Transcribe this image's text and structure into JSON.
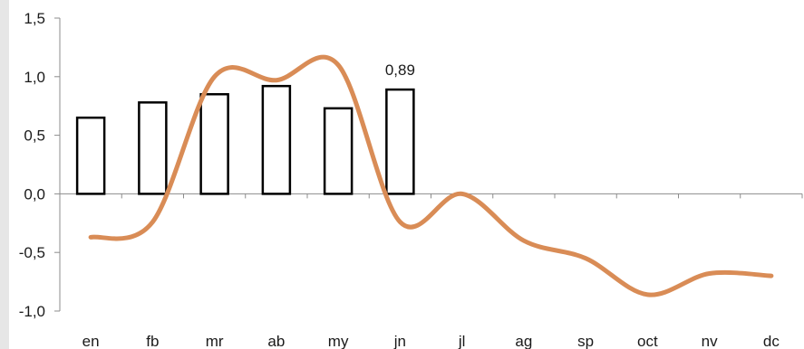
{
  "chart_data": {
    "type": "bar+line",
    "categories": [
      "en",
      "fb",
      "mr",
      "ab",
      "my",
      "jn",
      "jl",
      "ag",
      "sp",
      "oct",
      "nv",
      "dc"
    ],
    "series": [
      {
        "type": "bar",
        "values": [
          0.65,
          0.78,
          0.85,
          0.92,
          0.73,
          0.89,
          null,
          null,
          null,
          null,
          null,
          null
        ]
      },
      {
        "type": "line",
        "values": [
          -0.37,
          -0.24,
          1.0,
          0.97,
          1.1,
          -0.24,
          0.0,
          -0.4,
          -0.55,
          -0.86,
          -0.68,
          -0.7
        ],
        "color": "#d98c56"
      }
    ],
    "data_labels": [
      {
        "category": "jn",
        "text": "0,89"
      }
    ],
    "ylim": [
      -1.0,
      1.5
    ],
    "yticks": [
      "-1,0",
      "-0,5",
      "0,0",
      "0,5",
      "1,0",
      "1,5"
    ],
    "grid": false,
    "legend": "none"
  }
}
